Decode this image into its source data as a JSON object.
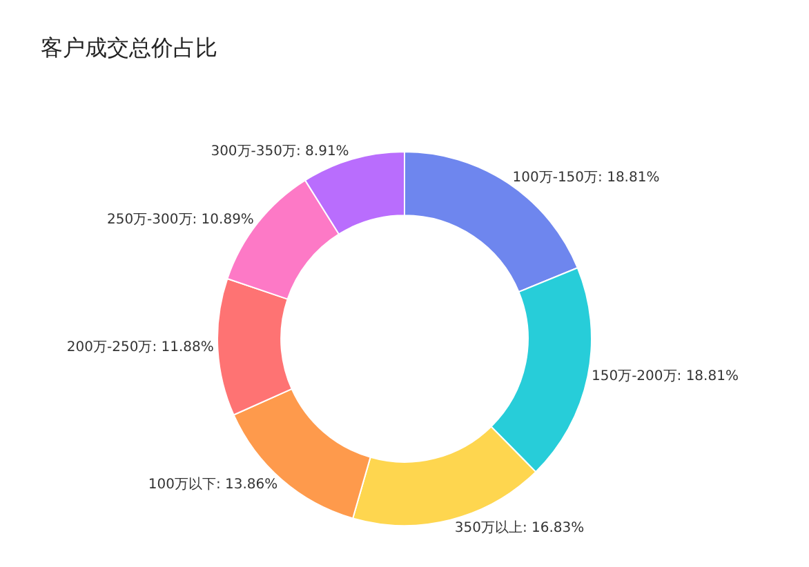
{
  "chart_data": {
    "type": "donut",
    "title": "客户成交总价占比",
    "categories": [
      "100万-150万",
      "150万-200万",
      "350万以上",
      "100万以下",
      "200万-250万",
      "250万-300万",
      "300万-350万"
    ],
    "values": [
      18.81,
      18.81,
      16.83,
      13.86,
      11.88,
      10.89,
      8.91
    ],
    "value_labels": [
      "18.81%",
      "18.81%",
      "16.83%",
      "13.86%",
      "11.88%",
      "10.89%",
      "8.91%"
    ],
    "colors": [
      "#6e86ee",
      "#27cdd9",
      "#fed64f",
      "#fe9a4c",
      "#fe7373",
      "#fd79c6",
      "#b96dfd"
    ],
    "legend": false
  }
}
